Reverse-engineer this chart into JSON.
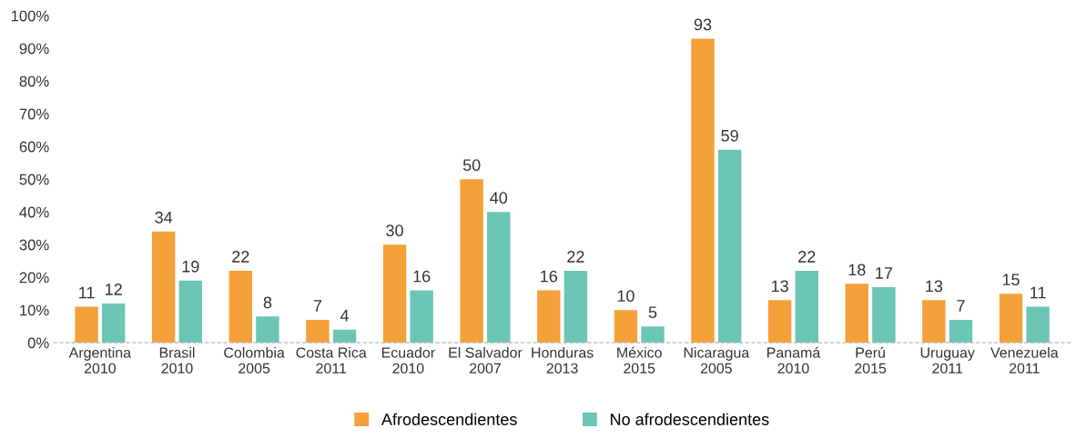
{
  "chart_data": {
    "type": "bar",
    "categories": [
      "Argentina\n2010",
      "Brasil\n2010",
      "Colombia\n2005",
      "Costa Rica\n2011",
      "Ecuador\n2010",
      "El Salvador\n2007",
      "Honduras\n2013",
      "México\n2015",
      "Nicaragua\n2005",
      "Panamá\n2010",
      "Perú\n2015",
      "Uruguay\n2011",
      "Venezuela\n2011"
    ],
    "series": [
      {
        "name": "Afrodescendientes",
        "color": "#f5a13a",
        "values": [
          11,
          34,
          22,
          7,
          30,
          50,
          16,
          10,
          93,
          13,
          18,
          13,
          15
        ]
      },
      {
        "name": "No afrodescendientes",
        "color": "#6cc6b6",
        "values": [
          12,
          19,
          8,
          4,
          16,
          40,
          22,
          5,
          59,
          22,
          17,
          7,
          11
        ]
      }
    ],
    "ylim": [
      0,
      100
    ],
    "yticks": [
      {
        "value": 0,
        "label": "0%"
      },
      {
        "value": 10,
        "label": "10%"
      },
      {
        "value": 20,
        "label": "20%"
      },
      {
        "value": 30,
        "label": "30%"
      },
      {
        "value": 40,
        "label": "40%"
      },
      {
        "value": 50,
        "label": "50%"
      },
      {
        "value": 60,
        "label": "60%"
      },
      {
        "value": 70,
        "label": "70%"
      },
      {
        "value": 80,
        "label": "80%"
      },
      {
        "value": 90,
        "label": "90%"
      },
      {
        "value": 100,
        "label": "100%"
      }
    ],
    "data_labels": true,
    "legend": "bottom",
    "grid": false
  }
}
